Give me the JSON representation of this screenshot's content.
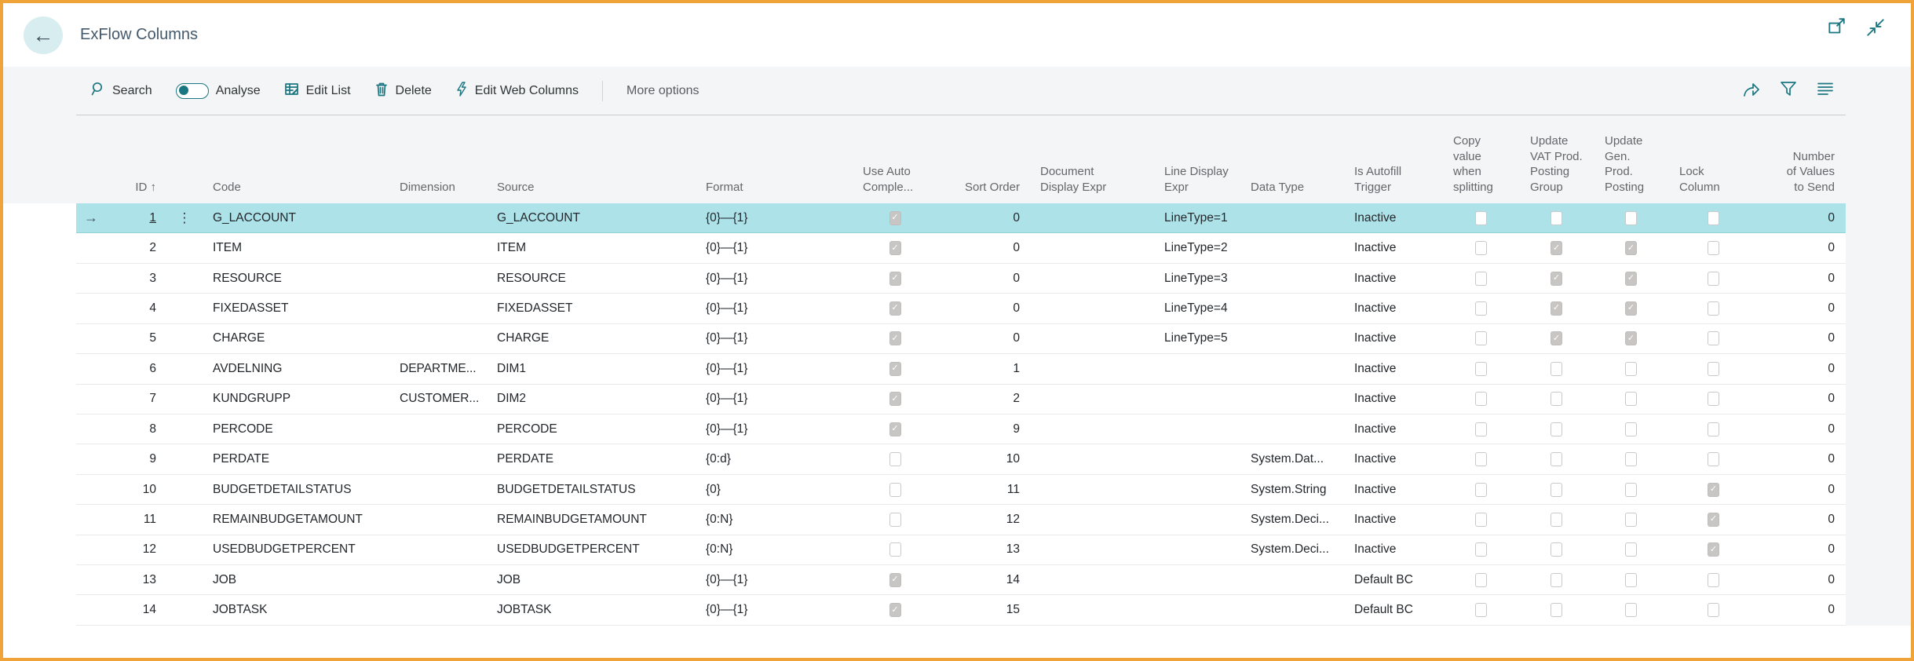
{
  "window": {
    "title": "ExFlow Columns"
  },
  "header": {
    "back_icon": "←"
  },
  "toolbar": {
    "search_label": "Search",
    "analyse_label": "Analyse",
    "edit_list_label": "Edit List",
    "delete_label": "Delete",
    "edit_web_columns_label": "Edit Web Columns",
    "more_options_label": "More options"
  },
  "colors": {
    "accent_teal": "#1a7680",
    "selection_teal": "#ade2e8",
    "window_border_orange": "#f0a339",
    "band_gray": "#f4f5f7"
  },
  "table": {
    "columns": [
      {
        "key": "arrow",
        "label": ""
      },
      {
        "key": "id",
        "label": "ID",
        "sort_indicator": "↑"
      },
      {
        "key": "menu",
        "label": ""
      },
      {
        "key": "code",
        "label": "Code"
      },
      {
        "key": "dimension",
        "label": "Dimension"
      },
      {
        "key": "source",
        "label": "Source"
      },
      {
        "key": "format",
        "label": "Format"
      },
      {
        "key": "use_auto",
        "label": "Use Auto\nComple...",
        "type": "checkbox"
      },
      {
        "key": "sort_order",
        "label": "Sort Order"
      },
      {
        "key": "document_display_expr",
        "label": "Document\nDisplay Expr"
      },
      {
        "key": "line_display_expr",
        "label": "Line Display\nExpr"
      },
      {
        "key": "data_type",
        "label": "Data Type"
      },
      {
        "key": "is_autofill_trigger",
        "label": "Is Autofill\nTrigger"
      },
      {
        "key": "copy_value_when_splitting",
        "label": "Copy\nvalue\nwhen\nsplitting",
        "type": "checkbox"
      },
      {
        "key": "update_vat_prod_posting_group",
        "label": "Update\nVAT Prod.\nPosting\nGroup",
        "type": "checkbox"
      },
      {
        "key": "update_gen_prod_posting",
        "label": "Update\nGen.\nProd.\nPosting",
        "type": "checkbox"
      },
      {
        "key": "lock_column",
        "label": "Lock\nColumn",
        "type": "checkbox"
      },
      {
        "key": "number_of_values_to_send",
        "label": "Number\nof Values\nto Send"
      }
    ],
    "row_menu_icon": "⋮",
    "selected_row_arrow": "→",
    "rows": [
      {
        "selected": true,
        "id": "1",
        "code": "G_LACCOUNT",
        "dimension": "",
        "source": "G_LACCOUNT",
        "format": "{0}—{1}",
        "use_auto": true,
        "sort_order": "0",
        "document_display_expr": "",
        "line_display_expr": "LineType=1",
        "data_type": "",
        "is_autofill_trigger": "Inactive",
        "copy_value_when_splitting": false,
        "update_vat_prod_posting_group": false,
        "update_gen_prod_posting": false,
        "lock_column": false,
        "number_of_values_to_send": "0"
      },
      {
        "selected": false,
        "id": "2",
        "code": "ITEM",
        "dimension": "",
        "source": "ITEM",
        "format": "{0}—{1}",
        "use_auto": true,
        "sort_order": "0",
        "document_display_expr": "",
        "line_display_expr": "LineType=2",
        "data_type": "",
        "is_autofill_trigger": "Inactive",
        "copy_value_when_splitting": false,
        "update_vat_prod_posting_group": true,
        "update_gen_prod_posting": true,
        "lock_column": false,
        "number_of_values_to_send": "0"
      },
      {
        "selected": false,
        "id": "3",
        "code": "RESOURCE",
        "dimension": "",
        "source": "RESOURCE",
        "format": "{0}—{1}",
        "use_auto": true,
        "sort_order": "0",
        "document_display_expr": "",
        "line_display_expr": "LineType=3",
        "data_type": "",
        "is_autofill_trigger": "Inactive",
        "copy_value_when_splitting": false,
        "update_vat_prod_posting_group": true,
        "update_gen_prod_posting": true,
        "lock_column": false,
        "number_of_values_to_send": "0"
      },
      {
        "selected": false,
        "id": "4",
        "code": "FIXEDASSET",
        "dimension": "",
        "source": "FIXEDASSET",
        "format": "{0}—{1}",
        "use_auto": true,
        "sort_order": "0",
        "document_display_expr": "",
        "line_display_expr": "LineType=4",
        "data_type": "",
        "is_autofill_trigger": "Inactive",
        "copy_value_when_splitting": false,
        "update_vat_prod_posting_group": true,
        "update_gen_prod_posting": true,
        "lock_column": false,
        "number_of_values_to_send": "0"
      },
      {
        "selected": false,
        "id": "5",
        "code": "CHARGE",
        "dimension": "",
        "source": "CHARGE",
        "format": "{0}—{1}",
        "use_auto": true,
        "sort_order": "0",
        "document_display_expr": "",
        "line_display_expr": "LineType=5",
        "data_type": "",
        "is_autofill_trigger": "Inactive",
        "copy_value_when_splitting": false,
        "update_vat_prod_posting_group": true,
        "update_gen_prod_posting": true,
        "lock_column": false,
        "number_of_values_to_send": "0"
      },
      {
        "selected": false,
        "id": "6",
        "code": "AVDELNING",
        "dimension": "DEPARTME...",
        "source": "DIM1",
        "format": "{0}—{1}",
        "use_auto": true,
        "sort_order": "1",
        "document_display_expr": "",
        "line_display_expr": "",
        "data_type": "",
        "is_autofill_trigger": "Inactive",
        "copy_value_when_splitting": false,
        "update_vat_prod_posting_group": false,
        "update_gen_prod_posting": false,
        "lock_column": false,
        "number_of_values_to_send": "0"
      },
      {
        "selected": false,
        "id": "7",
        "code": "KUNDGRUPP",
        "dimension": "CUSTOMER...",
        "source": "DIM2",
        "format": "{0}—{1}",
        "use_auto": true,
        "sort_order": "2",
        "document_display_expr": "",
        "line_display_expr": "",
        "data_type": "",
        "is_autofill_trigger": "Inactive",
        "copy_value_when_splitting": false,
        "update_vat_prod_posting_group": false,
        "update_gen_prod_posting": false,
        "lock_column": false,
        "number_of_values_to_send": "0"
      },
      {
        "selected": false,
        "id": "8",
        "code": "PERCODE",
        "dimension": "",
        "source": "PERCODE",
        "format": "{0}—{1}",
        "use_auto": true,
        "sort_order": "9",
        "document_display_expr": "",
        "line_display_expr": "",
        "data_type": "",
        "is_autofill_trigger": "Inactive",
        "copy_value_when_splitting": false,
        "update_vat_prod_posting_group": false,
        "update_gen_prod_posting": false,
        "lock_column": false,
        "number_of_values_to_send": "0"
      },
      {
        "selected": false,
        "id": "9",
        "code": "PERDATE",
        "dimension": "",
        "source": "PERDATE",
        "format": "{0:d}",
        "use_auto": false,
        "sort_order": "10",
        "document_display_expr": "",
        "line_display_expr": "",
        "data_type": "System.Dat...",
        "is_autofill_trigger": "Inactive",
        "copy_value_when_splitting": false,
        "update_vat_prod_posting_group": false,
        "update_gen_prod_posting": false,
        "lock_column": false,
        "number_of_values_to_send": "0"
      },
      {
        "selected": false,
        "id": "10",
        "code": "BUDGETDETAILSTATUS",
        "dimension": "",
        "source": "BUDGETDETAILSTATUS",
        "format": "{0}",
        "use_auto": false,
        "sort_order": "11",
        "document_display_expr": "",
        "line_display_expr": "",
        "data_type": "System.String",
        "is_autofill_trigger": "Inactive",
        "copy_value_when_splitting": false,
        "update_vat_prod_posting_group": false,
        "update_gen_prod_posting": false,
        "lock_column": true,
        "number_of_values_to_send": "0"
      },
      {
        "selected": false,
        "id": "11",
        "code": "REMAINBUDGETAMOUNT",
        "dimension": "",
        "source": "REMAINBUDGETAMOUNT",
        "format": "{0:N}",
        "use_auto": false,
        "sort_order": "12",
        "document_display_expr": "",
        "line_display_expr": "",
        "data_type": "System.Deci...",
        "is_autofill_trigger": "Inactive",
        "copy_value_when_splitting": false,
        "update_vat_prod_posting_group": false,
        "update_gen_prod_posting": false,
        "lock_column": true,
        "number_of_values_to_send": "0"
      },
      {
        "selected": false,
        "id": "12",
        "code": "USEDBUDGETPERCENT",
        "dimension": "",
        "source": "USEDBUDGETPERCENT",
        "format": "{0:N}",
        "use_auto": false,
        "sort_order": "13",
        "document_display_expr": "",
        "line_display_expr": "",
        "data_type": "System.Deci...",
        "is_autofill_trigger": "Inactive",
        "copy_value_when_splitting": false,
        "update_vat_prod_posting_group": false,
        "update_gen_prod_posting": false,
        "lock_column": true,
        "number_of_values_to_send": "0"
      },
      {
        "selected": false,
        "id": "13",
        "code": "JOB",
        "dimension": "",
        "source": "JOB",
        "format": "{0}—{1}",
        "use_auto": true,
        "sort_order": "14",
        "document_display_expr": "",
        "line_display_expr": "",
        "data_type": "",
        "is_autofill_trigger": "Default BC",
        "copy_value_when_splitting": false,
        "update_vat_prod_posting_group": false,
        "update_gen_prod_posting": false,
        "lock_column": false,
        "number_of_values_to_send": "0"
      },
      {
        "selected": false,
        "id": "14",
        "code": "JOBTASK",
        "dimension": "",
        "source": "JOBTASK",
        "format": "{0}—{1}",
        "use_auto": true,
        "sort_order": "15",
        "document_display_expr": "",
        "line_display_expr": "",
        "data_type": "",
        "is_autofill_trigger": "Default BC",
        "copy_value_when_splitting": false,
        "update_vat_prod_posting_group": false,
        "update_gen_prod_posting": false,
        "lock_column": false,
        "number_of_values_to_send": "0"
      }
    ]
  }
}
